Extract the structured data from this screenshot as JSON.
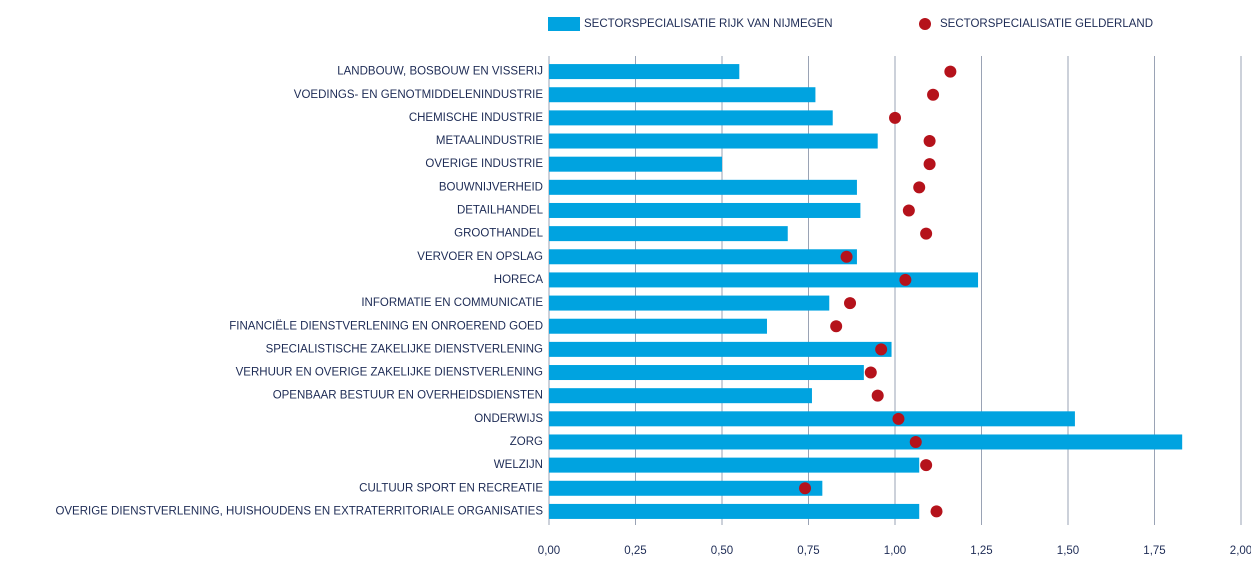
{
  "chart_data": {
    "type": "bar",
    "categories": [
      "LANDBOUW, BOSBOUW EN VISSERIJ",
      "VOEDINGS- EN GENOTMIDDELENINDUSTRIE",
      "CHEMISCHE INDUSTRIE",
      "METAALINDUSTRIE",
      "OVERIGE INDUSTRIE",
      "BOUWNIJVERHEID",
      "DETAILHANDEL",
      "GROOTHANDEL",
      "VERVOER EN OPSLAG",
      "HORECA",
      "INFORMATIE EN COMMUNICATIE",
      "FINANCIËLE DIENSTVERLENING EN ONROEREND GOED",
      "SPECIALISTISCHE ZAKELIJKE DIENSTVERLENING",
      "VERHUUR EN OVERIGE ZAKELIJKE DIENSTVERLENING",
      "OPENBAAR BESTUUR EN OVERHEIDSDIENSTEN",
      "ONDERWIJS",
      "ZORG",
      "WELZIJN",
      "CULTUUR SPORT EN RECREATIE",
      "OVERIGE DIENSTVERLENING, HUISHOUDENS EN EXTRATERRITORIALE ORGANISATIES"
    ],
    "series": [
      {
        "name": "SECTORSPECIALISATIE RIJK VAN NIJMEGEN",
        "color": "#00a3e0",
        "mark": "bar",
        "values": [
          0.55,
          0.77,
          0.82,
          0.95,
          0.5,
          0.89,
          0.9,
          0.69,
          0.89,
          1.24,
          0.81,
          0.63,
          0.99,
          0.91,
          0.76,
          1.52,
          1.83,
          1.07,
          0.79,
          1.07
        ]
      },
      {
        "name": "SECTORSPECIALISATIE GELDERLAND",
        "color": "#b5121b",
        "mark": "dot",
        "values": [
          1.16,
          1.11,
          1.0,
          1.1,
          1.1,
          1.07,
          1.04,
          1.09,
          0.86,
          1.03,
          0.87,
          0.83,
          0.96,
          0.93,
          0.95,
          1.01,
          1.06,
          1.09,
          0.74,
          1.12
        ]
      }
    ],
    "xlim": [
      0,
      2
    ],
    "xticks": [
      {
        "value": 0,
        "label": "0,00"
      },
      {
        "value": 0.25,
        "label": "0,25"
      },
      {
        "value": 0.5,
        "label": "0,50"
      },
      {
        "value": 0.75,
        "label": "0,75"
      },
      {
        "value": 1,
        "label": "1,00"
      },
      {
        "value": 1.25,
        "label": "1,25"
      },
      {
        "value": 1.5,
        "label": "1,50"
      },
      {
        "value": 1.75,
        "label": "1,75"
      },
      {
        "value": 2,
        "label": "2,00"
      }
    ],
    "grid": true
  }
}
